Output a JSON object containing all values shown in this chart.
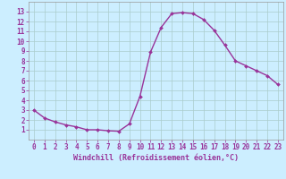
{
  "x": [
    0,
    1,
    2,
    3,
    4,
    5,
    6,
    7,
    8,
    9,
    10,
    11,
    12,
    13,
    14,
    15,
    16,
    17,
    18,
    19,
    20,
    21,
    22,
    23
  ],
  "y": [
    3.0,
    2.2,
    1.8,
    1.5,
    1.3,
    1.0,
    1.0,
    0.9,
    0.85,
    1.6,
    4.4,
    8.9,
    11.4,
    12.8,
    12.9,
    12.8,
    12.2,
    11.1,
    9.6,
    8.0,
    7.5,
    7.0,
    6.5,
    5.6
  ],
  "line_color": "#993399",
  "marker": "D",
  "marker_size": 2.0,
  "bg_color": "#cceeff",
  "grid_color": "#aacccc",
  "xlabel": "Windchill (Refroidissement éolien,°C)",
  "ylabel": "",
  "xlim": [
    -0.5,
    23.5
  ],
  "ylim": [
    0,
    14
  ],
  "yticks": [
    1,
    2,
    3,
    4,
    5,
    6,
    7,
    8,
    9,
    10,
    11,
    12,
    13
  ],
  "xticks": [
    0,
    1,
    2,
    3,
    4,
    5,
    6,
    7,
    8,
    9,
    10,
    11,
    12,
    13,
    14,
    15,
    16,
    17,
    18,
    19,
    20,
    21,
    22,
    23
  ],
  "xlabel_fontsize": 6.0,
  "tick_fontsize": 5.5,
  "line_width": 1.0,
  "axis_color": "#993399",
  "spine_color": "#999999"
}
